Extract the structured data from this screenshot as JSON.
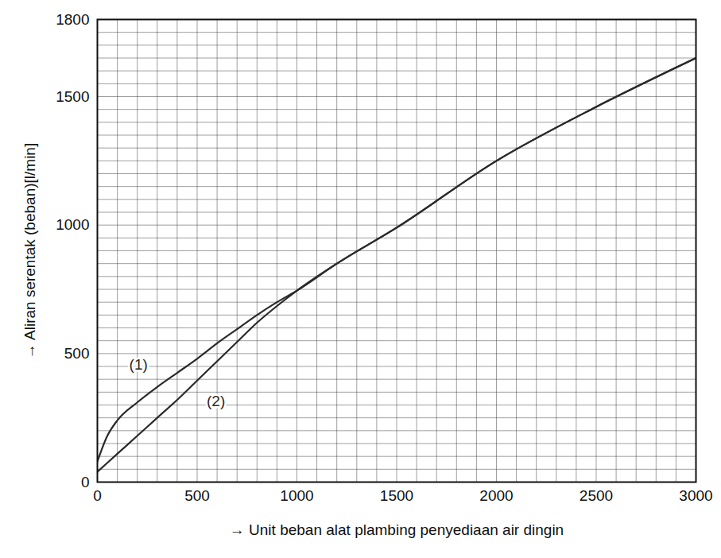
{
  "chart_data": {
    "type": "line",
    "x_label": "→ Unit beban alat plambing penyediaan air dingin",
    "y_label": "→ Aliran serentak (beban)[l/min]",
    "x": [
      0,
      50,
      100,
      200,
      300,
      400,
      500,
      600,
      700,
      800,
      900,
      1000,
      1200,
      1500,
      2000,
      2500,
      3000
    ],
    "series": [
      {
        "name": "(1)",
        "color": "#2a2a2a",
        "values": [
          80,
          180,
          240,
          310,
          370,
          425,
          480,
          540,
          595,
          650,
          700,
          745,
          850,
          990,
          1250,
          1460,
          1650
        ]
      },
      {
        "name": "(2)",
        "color": "#2a2a2a",
        "values": [
          40,
          75,
          110,
          180,
          250,
          320,
          395,
          470,
          545,
          620,
          685,
          745,
          850,
          990,
          1250,
          1460,
          1650
        ]
      }
    ],
    "xlim": [
      0,
      3000
    ],
    "xticks": [
      0,
      500,
      1000,
      1500,
      2000,
      2500,
      3000
    ],
    "ylim": [
      0,
      1800
    ],
    "yticks": [
      0,
      500,
      1000,
      1500,
      1800
    ],
    "grid": true
  }
}
